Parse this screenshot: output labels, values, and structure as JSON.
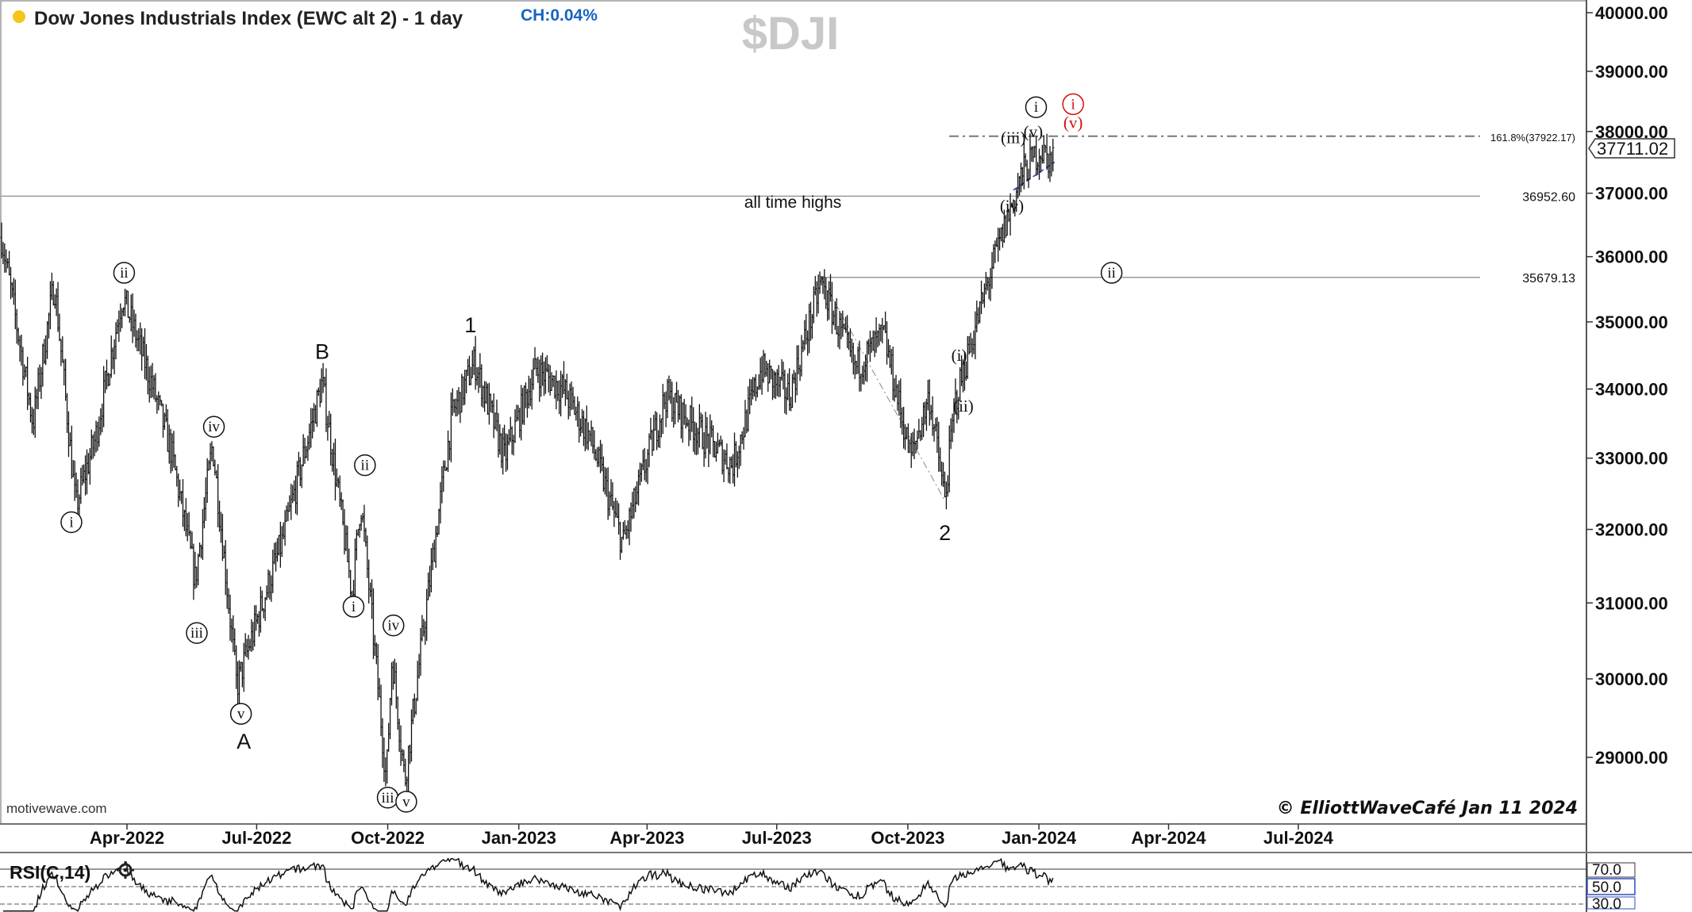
{
  "header": {
    "title": "Dow Jones Industrials Index (EWC alt 2) - 1 day",
    "change": "CH:0.04%",
    "symbol": "$DJI",
    "status_dot_color": "#f5c518",
    "change_color": "#1565c0"
  },
  "footer": {
    "source": "motivewave.com",
    "copyright": "© ElliottWaveCafé Jan 11  2024"
  },
  "annotations": {
    "all_time_highs": "all time highs",
    "level_ath": "36952.60",
    "level_prior_high": "35679.13",
    "fib_label": "161.8%(37922.17)",
    "last_price": "37711.02"
  },
  "rsi": {
    "label": "RSI(C,14)",
    "levels": [
      "70.0",
      "50.0",
      "30.0"
    ],
    "overbought_fill_color": "#e57373"
  },
  "chart_data": {
    "type": "ohlc",
    "y_axis_ticks": [
      "29000.00",
      "30000.00",
      "31000.00",
      "32000.00",
      "33000.00",
      "34000.00",
      "35000.00",
      "36000.00",
      "37000.00",
      "38000.00",
      "39000.00",
      "40000.00"
    ],
    "x_axis_ticks": [
      "Apr-2022",
      "Jul-2022",
      "Oct-2022",
      "Jan-2023",
      "Apr-2023",
      "Jul-2023",
      "Oct-2023",
      "Jan-2024",
      "Apr-2024",
      "Jul-2024"
    ],
    "log_scale": true,
    "price_path": [
      {
        "date": "2022-01-03",
        "price": 36300
      },
      {
        "date": "2022-01-25",
        "price": 33500
      },
      {
        "date": "2022-02-09",
        "price": 35600
      },
      {
        "date": "2022-02-24",
        "price": 32300
      },
      {
        "date": "2022-03-10",
        "price": 33300
      },
      {
        "date": "2022-03-29",
        "price": 35400
      },
      {
        "date": "2022-04-18",
        "price": 34100
      },
      {
        "date": "2022-05-02",
        "price": 33100
      },
      {
        "date": "2022-05-19",
        "price": 31300
      },
      {
        "date": "2022-05-31",
        "price": 33200
      },
      {
        "date": "2022-06-17",
        "price": 29900
      },
      {
        "date": "2022-07-20",
        "price": 31900
      },
      {
        "date": "2022-08-16",
        "price": 34100
      },
      {
        "date": "2022-09-06",
        "price": 31100
      },
      {
        "date": "2022-09-12",
        "price": 32400
      },
      {
        "date": "2022-09-30",
        "price": 28700
      },
      {
        "date": "2022-10-04",
        "price": 30300
      },
      {
        "date": "2022-10-13",
        "price": 28700
      },
      {
        "date": "2022-11-15",
        "price": 33600
      },
      {
        "date": "2022-12-01",
        "price": 34400
      },
      {
        "date": "2022-12-22",
        "price": 33000
      },
      {
        "date": "2023-01-13",
        "price": 34300
      },
      {
        "date": "2023-02-01",
        "price": 34000
      },
      {
        "date": "2023-02-20",
        "price": 33300
      },
      {
        "date": "2023-03-15",
        "price": 31800
      },
      {
        "date": "2023-04-14",
        "price": 33900
      },
      {
        "date": "2023-05-11",
        "price": 33300
      },
      {
        "date": "2023-05-31",
        "price": 32900
      },
      {
        "date": "2023-06-20",
        "price": 34300
      },
      {
        "date": "2023-07-10",
        "price": 33900
      },
      {
        "date": "2023-08-01",
        "price": 35600
      },
      {
        "date": "2023-08-25",
        "price": 34300
      },
      {
        "date": "2023-09-14",
        "price": 34800
      },
      {
        "date": "2023-10-03",
        "price": 33000
      },
      {
        "date": "2023-10-16",
        "price": 33900
      },
      {
        "date": "2023-10-27",
        "price": 32400
      },
      {
        "date": "2023-11-03",
        "price": 33800
      },
      {
        "date": "2023-11-30",
        "price": 35900
      },
      {
        "date": "2023-12-20",
        "price": 37300
      },
      {
        "date": "2024-01-02",
        "price": 37700
      },
      {
        "date": "2024-01-10",
        "price": 37500
      },
      {
        "date": "2024-01-11",
        "price": 37711
      }
    ],
    "horizontal_levels": [
      {
        "value": 36952.6,
        "label": "36952.60",
        "start": "2022-01-03",
        "end": "2024-07-31"
      },
      {
        "value": 35679.13,
        "label": "35679.13",
        "start": "2023-08-01",
        "end": "2024-07-31"
      },
      {
        "value": 37922.17,
        "label": "161.8%(37922.17)",
        "start": "2023-10-30",
        "end": "2024-07-31",
        "style": "dashdot"
      }
    ],
    "wave_labels": [
      {
        "text": "i",
        "style": "circle",
        "date": "2022-02-21",
        "price": 32100
      },
      {
        "text": "ii",
        "style": "circle",
        "date": "2022-03-30",
        "price": 35750
      },
      {
        "text": "iii",
        "style": "circle",
        "date": "2022-05-20",
        "price": 30600
      },
      {
        "text": "iv",
        "style": "circle",
        "date": "2022-06-01",
        "price": 33450
      },
      {
        "text": "v",
        "style": "circle",
        "date": "2022-06-20",
        "price": 29550
      },
      {
        "text": "A",
        "style": "plain",
        "date": "2022-06-22",
        "price": 29200
      },
      {
        "text": "B",
        "style": "plain",
        "date": "2022-08-16",
        "price": 34550
      },
      {
        "text": "ii",
        "style": "circle",
        "date": "2022-09-15",
        "price": 32900
      },
      {
        "text": "i",
        "style": "circle",
        "date": "2022-09-07",
        "price": 30950
      },
      {
        "text": "iv",
        "style": "circle",
        "date": "2022-10-05",
        "price": 30700
      },
      {
        "text": "iii",
        "style": "circle",
        "date": "2022-10-01",
        "price": 28500
      },
      {
        "text": "v",
        "style": "circle",
        "date": "2022-10-14",
        "price": 28450
      },
      {
        "text": "1",
        "style": "plain",
        "date": "2022-11-28",
        "price": 34950
      },
      {
        "text": "2",
        "style": "plain",
        "date": "2023-10-27",
        "price": 31950
      },
      {
        "text": "(i)",
        "style": "paren",
        "date": "2023-11-06",
        "price": 34500
      },
      {
        "text": "(ii)",
        "style": "paren",
        "date": "2023-11-09",
        "price": 33750
      },
      {
        "text": "(iii)",
        "style": "paren",
        "date": "2023-12-14",
        "price": 37900
      },
      {
        "text": "(iv)",
        "style": "paren",
        "date": "2023-12-13",
        "price": 36800
      },
      {
        "text": "(v)",
        "style": "paren",
        "date": "2023-12-28",
        "price": 38000
      },
      {
        "text": "i",
        "style": "circle",
        "date": "2023-12-30",
        "price": 38400
      },
      {
        "text": "ii",
        "style": "circle",
        "date": "2024-02-21",
        "price": 35750
      },
      {
        "text": "(v)",
        "style": "paren_red",
        "date": "2024-01-25",
        "price": 38150
      },
      {
        "text": "i",
        "style": "circle_red",
        "date": "2024-01-25",
        "price": 38450
      }
    ]
  }
}
